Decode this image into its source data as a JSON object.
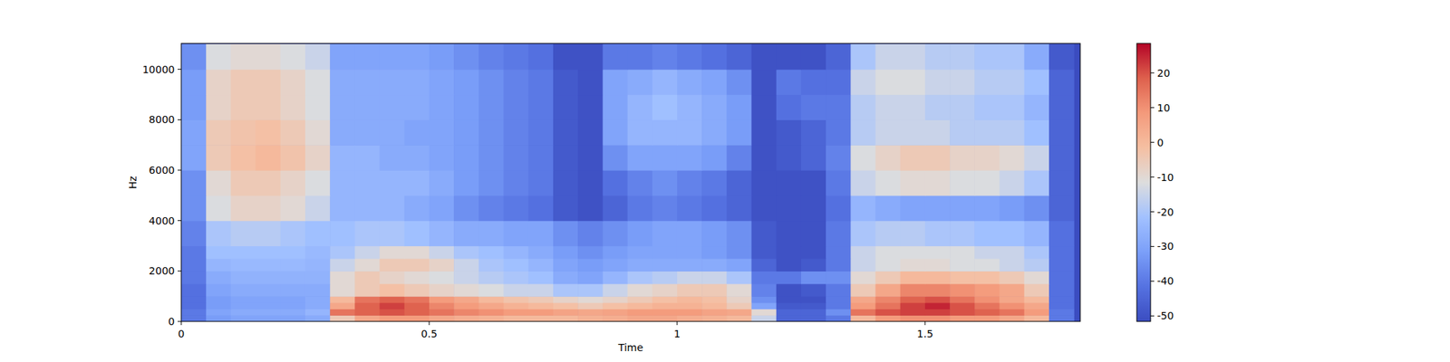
{
  "chart_data": {
    "type": "heatmap",
    "x_label": "Time",
    "y_label": "Hz",
    "x": [
      0,
      0.05,
      0.1,
      0.15,
      0.2,
      0.25,
      0.3,
      0.35,
      0.4,
      0.45,
      0.5,
      0.55,
      0.6,
      0.65,
      0.7,
      0.75,
      0.8,
      0.85,
      0.9,
      0.95,
      1,
      1.05,
      1.1,
      1.15,
      1.2,
      1.25,
      1.3,
      1.35,
      1.4,
      1.45,
      1.5,
      1.55,
      1.6,
      1.65,
      1.7,
      1.75,
      1.8
    ],
    "y": [
      0,
      250,
      500,
      750,
      1000,
      1500,
      2000,
      2500,
      3000,
      4000,
      5000,
      6000,
      7000,
      8000,
      9000,
      10000,
      11000
    ],
    "values": [
      [
        -40,
        -32,
        -30,
        -30,
        -30,
        -28,
        -5,
        5,
        8,
        8,
        5,
        3,
        2,
        0,
        0,
        0,
        2,
        3,
        5,
        5,
        3,
        2,
        0,
        -15,
        -45,
        -45,
        -40,
        0,
        8,
        10,
        10,
        8,
        8,
        5,
        0,
        -40
      ],
      [
        -40,
        -30,
        -28,
        -28,
        -28,
        -25,
        15,
        18,
        20,
        18,
        15,
        12,
        10,
        8,
        8,
        6,
        5,
        6,
        8,
        8,
        8,
        6,
        5,
        -10,
        -45,
        -45,
        -35,
        15,
        20,
        22,
        22,
        20,
        18,
        15,
        8,
        -40
      ],
      [
        -42,
        -32,
        -30,
        -30,
        -30,
        -28,
        5,
        18,
        22,
        18,
        12,
        8,
        5,
        2,
        0,
        -2,
        -5,
        -2,
        0,
        2,
        2,
        0,
        -5,
        -30,
        -48,
        -48,
        -40,
        8,
        15,
        22,
        25,
        20,
        15,
        10,
        5,
        -42
      ],
      [
        -42,
        -32,
        -30,
        -30,
        -30,
        -28,
        0,
        15,
        18,
        15,
        8,
        5,
        0,
        -3,
        -5,
        -8,
        -10,
        -8,
        -5,
        -2,
        0,
        -2,
        -8,
        -35,
        -50,
        -50,
        -40,
        5,
        12,
        18,
        20,
        15,
        10,
        5,
        0,
        -42
      ],
      [
        -42,
        -30,
        -28,
        -28,
        -28,
        -28,
        -10,
        -5,
        -2,
        -5,
        -8,
        -10,
        -12,
        -15,
        -15,
        -20,
        -20,
        -15,
        -10,
        -8,
        -5,
        -5,
        -10,
        -38,
        -50,
        -48,
        -40,
        -5,
        5,
        12,
        12,
        10,
        8,
        5,
        -5,
        -42
      ],
      [
        -40,
        -28,
        -26,
        -26,
        -26,
        -26,
        -10,
        -5,
        -8,
        -10,
        -12,
        -15,
        -18,
        -20,
        -22,
        -28,
        -30,
        -25,
        -20,
        -18,
        -15,
        -15,
        -20,
        -40,
        -40,
        -35,
        -35,
        -10,
        -5,
        0,
        0,
        -2,
        -2,
        -5,
        -10,
        -42
      ],
      [
        -40,
        -25,
        -24,
        -24,
        -24,
        -25,
        -15,
        -10,
        -5,
        -5,
        -8,
        -15,
        -20,
        -22,
        -25,
        -30,
        -32,
        -30,
        -28,
        -28,
        -28,
        -28,
        -30,
        -45,
        -50,
        -48,
        -40,
        -15,
        -12,
        -10,
        -10,
        -12,
        -12,
        -15,
        -18,
        -42
      ],
      [
        -40,
        -22,
        -22,
        -22,
        -22,
        -24,
        -20,
        -15,
        -10,
        -10,
        -15,
        -20,
        -22,
        -25,
        -28,
        -32,
        -35,
        -32,
        -30,
        -30,
        -30,
        -32,
        -35,
        -48,
        -50,
        -50,
        -40,
        -15,
        -12,
        -12,
        -12,
        -12,
        -15,
        -15,
        -20,
        -42
      ],
      [
        -38,
        -20,
        -18,
        -18,
        -20,
        -22,
        -22,
        -20,
        -20,
        -22,
        -25,
        -28,
        -28,
        -30,
        -30,
        -35,
        -38,
        -35,
        -32,
        -30,
        -30,
        -32,
        -35,
        -48,
        -50,
        -50,
        -40,
        -20,
        -18,
        -18,
        -20,
        -20,
        -22,
        -22,
        -25,
        -42
      ],
      [
        -35,
        -12,
        -8,
        -8,
        -10,
        -15,
        -25,
        -25,
        -25,
        -28,
        -30,
        -35,
        -38,
        -40,
        -42,
        -48,
        -50,
        -45,
        -40,
        -38,
        -40,
        -42,
        -45,
        -50,
        -50,
        -50,
        -42,
        -25,
        -28,
        -30,
        -30,
        -30,
        -30,
        -32,
        -35,
        -45
      ],
      [
        -35,
        -10,
        -5,
        -5,
        -8,
        -12,
        -25,
        -25,
        -25,
        -25,
        -28,
        -32,
        -35,
        -38,
        -40,
        -48,
        -50,
        -42,
        -38,
        -35,
        -38,
        -40,
        -45,
        -50,
        -50,
        -50,
        -40,
        -15,
        -12,
        -10,
        -10,
        -12,
        -12,
        -15,
        -20,
        -45
      ],
      [
        -30,
        -5,
        -2,
        0,
        -3,
        -8,
        -25,
        -25,
        -28,
        -28,
        -30,
        -32,
        -35,
        -38,
        -40,
        -48,
        -50,
        -35,
        -30,
        -30,
        -30,
        -32,
        -38,
        -50,
        -48,
        -45,
        -38,
        -12,
        -8,
        -5,
        -5,
        -8,
        -8,
        -10,
        -15,
        -45
      ],
      [
        -30,
        -5,
        -3,
        -2,
        -5,
        -10,
        -28,
        -28,
        -28,
        -30,
        -30,
        -32,
        -35,
        -38,
        -40,
        -48,
        -50,
        -30,
        -25,
        -25,
        -25,
        -28,
        -32,
        -50,
        -48,
        -45,
        -40,
        -18,
        -15,
        -15,
        -15,
        -18,
        -18,
        -18,
        -22,
        -45
      ],
      [
        -32,
        -8,
        -5,
        -5,
        -8,
        -12,
        -28,
        -28,
        -28,
        -28,
        -30,
        -32,
        -35,
        -38,
        -40,
        -48,
        -50,
        -30,
        -25,
        -22,
        -25,
        -28,
        -32,
        -50,
        -42,
        -40,
        -40,
        -18,
        -15,
        -15,
        -18,
        -18,
        -20,
        -20,
        -25,
        -45
      ],
      [
        -32,
        -8,
        -5,
        -5,
        -8,
        -12,
        -28,
        -28,
        -28,
        -28,
        -30,
        -32,
        -35,
        -38,
        -40,
        -48,
        -50,
        -30,
        -28,
        -25,
        -28,
        -30,
        -35,
        -50,
        -40,
        -42,
        -42,
        -15,
        -12,
        -12,
        -15,
        -15,
        -18,
        -18,
        -22,
        -45
      ],
      [
        -35,
        -12,
        -10,
        -10,
        -12,
        -15,
        -30,
        -30,
        -30,
        -30,
        -32,
        -35,
        -38,
        -40,
        -42,
        -50,
        -50,
        -40,
        -40,
        -38,
        -40,
        -42,
        -45,
        -50,
        -50,
        -50,
        -45,
        -20,
        -15,
        -15,
        -18,
        -18,
        -20,
        -20,
        -28,
        -48
      ]
    ],
    "xlim": [
      0,
      1.813
    ],
    "ylim": [
      0,
      11025
    ],
    "xticks": [
      0,
      0.5,
      1,
      1.5
    ],
    "yticks": [
      0,
      2000,
      4000,
      6000,
      8000,
      10000
    ],
    "colorbar": {
      "range": [
        -51.6,
        28.5
      ],
      "ticks": [
        -50,
        -40,
        -30,
        -20,
        -10,
        0,
        10,
        20
      ]
    }
  }
}
